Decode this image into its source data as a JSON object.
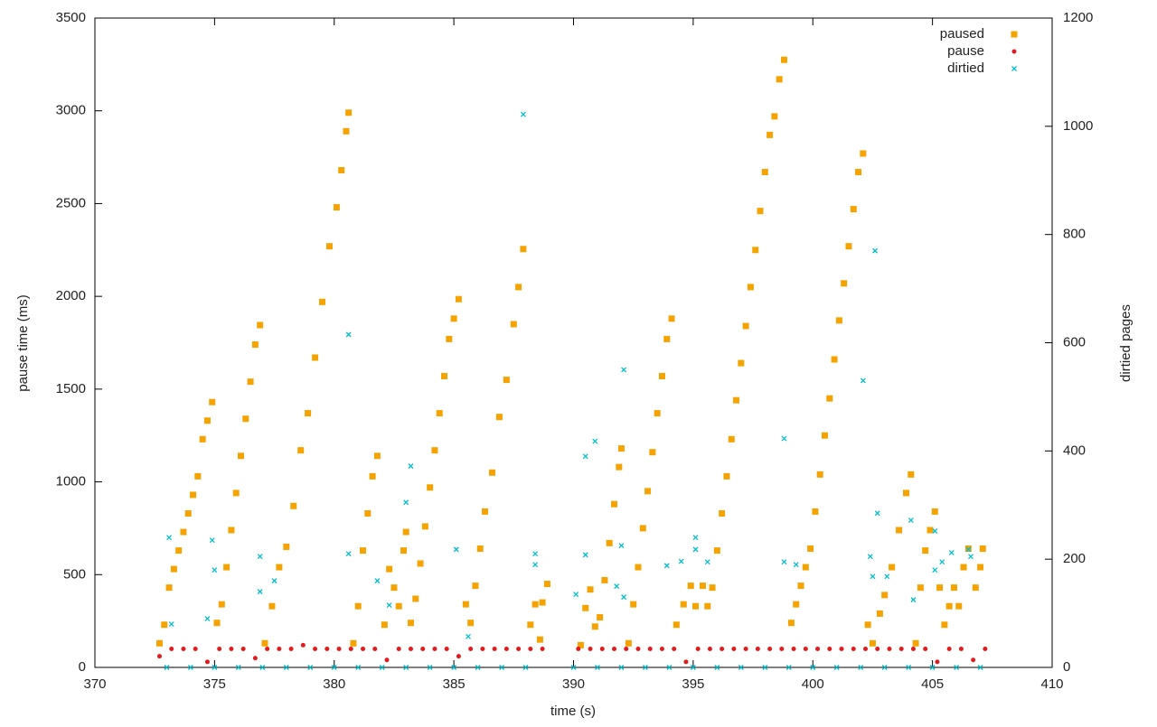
{
  "chart_data": {
    "type": "scatter",
    "x_label": "time (s)",
    "y_label": "pause time (ms)",
    "y2_label": "dirtied pages",
    "xlim": [
      370,
      410
    ],
    "xticks": [
      370,
      375,
      380,
      385,
      390,
      395,
      400,
      405,
      410
    ],
    "ylim": [
      0,
      3500
    ],
    "yticks": [
      0,
      500,
      1000,
      1500,
      2000,
      2500,
      3000,
      3500
    ],
    "y2lim": [
      0,
      1200
    ],
    "y2ticks": [
      0,
      200,
      400,
      600,
      800,
      1000,
      1200
    ],
    "grid": false,
    "legend": "top-right",
    "series": [
      {
        "name": "paused",
        "color": "#f5a300",
        "marker": "square",
        "x": [
          372.7,
          372.9,
          373.1,
          373.3,
          373.5,
          373.7,
          373.9,
          374.1,
          374.3,
          374.5,
          374.7,
          374.9,
          375.1,
          375.3,
          375.5,
          375.7,
          375.9,
          376.1,
          376.3,
          376.5,
          376.7,
          376.9,
          377.1,
          377.4,
          377.7,
          378.0,
          378.3,
          378.6,
          378.9,
          379.2,
          379.5,
          379.8,
          380.1,
          380.3,
          380.5,
          380.6,
          380.8,
          381.0,
          381.2,
          381.4,
          381.6,
          381.8,
          382.1,
          382.3,
          382.5,
          382.7,
          382.9,
          383.0,
          383.2,
          383.4,
          383.6,
          383.8,
          384.0,
          384.2,
          384.4,
          384.6,
          384.8,
          385.0,
          385.2,
          385.5,
          385.7,
          385.9,
          386.1,
          386.3,
          386.6,
          386.9,
          387.2,
          387.5,
          387.7,
          387.9,
          388.2,
          388.4,
          388.6,
          388.7,
          388.9,
          390.3,
          390.5,
          390.7,
          390.9,
          391.1,
          391.3,
          391.5,
          391.7,
          391.9,
          392.0,
          392.3,
          392.5,
          392.7,
          392.9,
          393.1,
          393.3,
          393.5,
          393.7,
          393.9,
          394.1,
          394.3,
          394.6,
          394.9,
          395.1,
          395.4,
          395.6,
          395.8,
          396.0,
          396.2,
          396.4,
          396.6,
          396.8,
          397.0,
          397.2,
          397.4,
          397.6,
          397.8,
          398.0,
          398.2,
          398.4,
          398.6,
          398.8,
          399.1,
          399.3,
          399.5,
          399.7,
          399.9,
          400.1,
          400.3,
          400.5,
          400.7,
          400.9,
          401.1,
          401.3,
          401.5,
          401.7,
          401.9,
          402.1,
          402.3,
          402.5,
          402.8,
          403.0,
          403.3,
          403.6,
          403.9,
          404.1,
          404.3,
          404.5,
          404.7,
          404.9,
          405.1,
          405.3,
          405.5,
          405.7,
          405.9,
          406.1,
          406.3,
          406.5,
          406.8,
          407.0,
          407.1
        ],
        "values": [
          130,
          230,
          430,
          530,
          630,
          730,
          830,
          930,
          1030,
          1230,
          1330,
          1430,
          240,
          340,
          540,
          740,
          940,
          1140,
          1340,
          1540,
          1740,
          1845,
          130,
          330,
          540,
          650,
          870,
          1170,
          1370,
          1670,
          1970,
          2270,
          2480,
          2680,
          2890,
          2990,
          130,
          330,
          630,
          830,
          1030,
          1140,
          230,
          530,
          430,
          330,
          630,
          730,
          240,
          370,
          560,
          760,
          970,
          1170,
          1370,
          1570,
          1770,
          1880,
          1985,
          340,
          240,
          440,
          640,
          840,
          1050,
          1350,
          1550,
          1850,
          2050,
          2255,
          230,
          340,
          150,
          350,
          450,
          120,
          320,
          420,
          220,
          270,
          470,
          670,
          880,
          1080,
          1180,
          130,
          340,
          540,
          750,
          950,
          1160,
          1370,
          1570,
          1770,
          1880,
          230,
          340,
          440,
          330,
          440,
          330,
          430,
          630,
          830,
          1030,
          1230,
          1440,
          1640,
          1840,
          2050,
          2250,
          2460,
          2670,
          2870,
          2970,
          3170,
          3275,
          240,
          340,
          440,
          540,
          640,
          840,
          1040,
          1250,
          1450,
          1660,
          1870,
          2070,
          2270,
          2470,
          2670,
          2770,
          230,
          130,
          290,
          390,
          540,
          740,
          940,
          1040,
          130,
          430,
          630,
          740,
          840,
          430,
          230,
          330,
          430,
          330,
          540,
          640,
          430,
          540,
          640
        ]
      },
      {
        "name": "pause",
        "color": "#e41a1c",
        "marker": "circle",
        "x": [
          372.7,
          373.2,
          373.7,
          374.2,
          374.7,
          375.2,
          375.7,
          376.2,
          376.7,
          377.2,
          377.7,
          378.2,
          378.7,
          379.2,
          379.7,
          380.2,
          380.7,
          381.2,
          381.7,
          382.2,
          382.7,
          383.2,
          383.7,
          384.2,
          384.7,
          385.2,
          385.7,
          386.2,
          386.7,
          387.2,
          387.7,
          388.2,
          388.7,
          390.2,
          390.7,
          391.2,
          391.7,
          392.2,
          392.7,
          393.2,
          393.7,
          394.2,
          394.7,
          395.2,
          395.7,
          396.2,
          396.7,
          397.2,
          397.7,
          398.2,
          398.7,
          399.2,
          399.7,
          400.2,
          400.7,
          401.2,
          401.7,
          402.2,
          402.7,
          403.2,
          403.7,
          404.2,
          404.7,
          405.2,
          405.7,
          406.2,
          406.7,
          407.2
        ],
        "values": [
          60,
          100,
          100,
          100,
          30,
          100,
          100,
          100,
          50,
          100,
          100,
          100,
          120,
          100,
          100,
          100,
          100,
          100,
          100,
          40,
          100,
          100,
          100,
          100,
          100,
          60,
          100,
          100,
          100,
          100,
          100,
          100,
          100,
          100,
          100,
          100,
          100,
          100,
          100,
          100,
          100,
          100,
          30,
          100,
          100,
          100,
          100,
          100,
          100,
          100,
          100,
          100,
          100,
          100,
          100,
          100,
          100,
          100,
          100,
          100,
          100,
          100,
          100,
          30,
          100,
          100,
          40,
          100
        ]
      },
      {
        "name": "dirtied",
        "color": "#00bfd0",
        "marker": "cross",
        "axis": "y2",
        "x": [
          373.1,
          373.2,
          374.7,
          374.9,
          375.0,
          376.9,
          376.9,
          377.5,
          380.6,
          380.6,
          381.8,
          382.3,
          383.0,
          383.2,
          385.1,
          385.6,
          387.9,
          388.4,
          388.4,
          390.1,
          390.5,
          390.5,
          390.9,
          391.8,
          392.0,
          392.1,
          392.1,
          393.9,
          394.5,
          395.1,
          395.1,
          395.6,
          398.8,
          398.8,
          399.3,
          402.1,
          402.4,
          402.5,
          402.6,
          402.7,
          403.1,
          404.1,
          404.2,
          405.1,
          405.1,
          405.4,
          405.8,
          406.5,
          406.6,
          373,
          374,
          375,
          376,
          377,
          378,
          379,
          380,
          381,
          382,
          383,
          384,
          385,
          386,
          387,
          388,
          390,
          391,
          392,
          393,
          394,
          395,
          396,
          397,
          398,
          399,
          400,
          401,
          402,
          403,
          404,
          405,
          406,
          407
        ],
        "values": [
          240,
          80,
          90,
          235,
          180,
          205,
          140,
          160,
          615,
          210,
          160,
          115,
          305,
          372,
          218,
          57,
          1022,
          210,
          190,
          135,
          390,
          208,
          418,
          150,
          225,
          550,
          130,
          188,
          196,
          240,
          218,
          195,
          423,
          195,
          190,
          530,
          205,
          168,
          770,
          285,
          168,
          272,
          125,
          252,
          180,
          195,
          212,
          218,
          205,
          0,
          0,
          0,
          0,
          0,
          0,
          0,
          0,
          0,
          0,
          0,
          0,
          0,
          0,
          0,
          0,
          0,
          0,
          0,
          0,
          0,
          0,
          0,
          0,
          0,
          0,
          0,
          0,
          0,
          0,
          0,
          0,
          0,
          0
        ]
      }
    ]
  }
}
